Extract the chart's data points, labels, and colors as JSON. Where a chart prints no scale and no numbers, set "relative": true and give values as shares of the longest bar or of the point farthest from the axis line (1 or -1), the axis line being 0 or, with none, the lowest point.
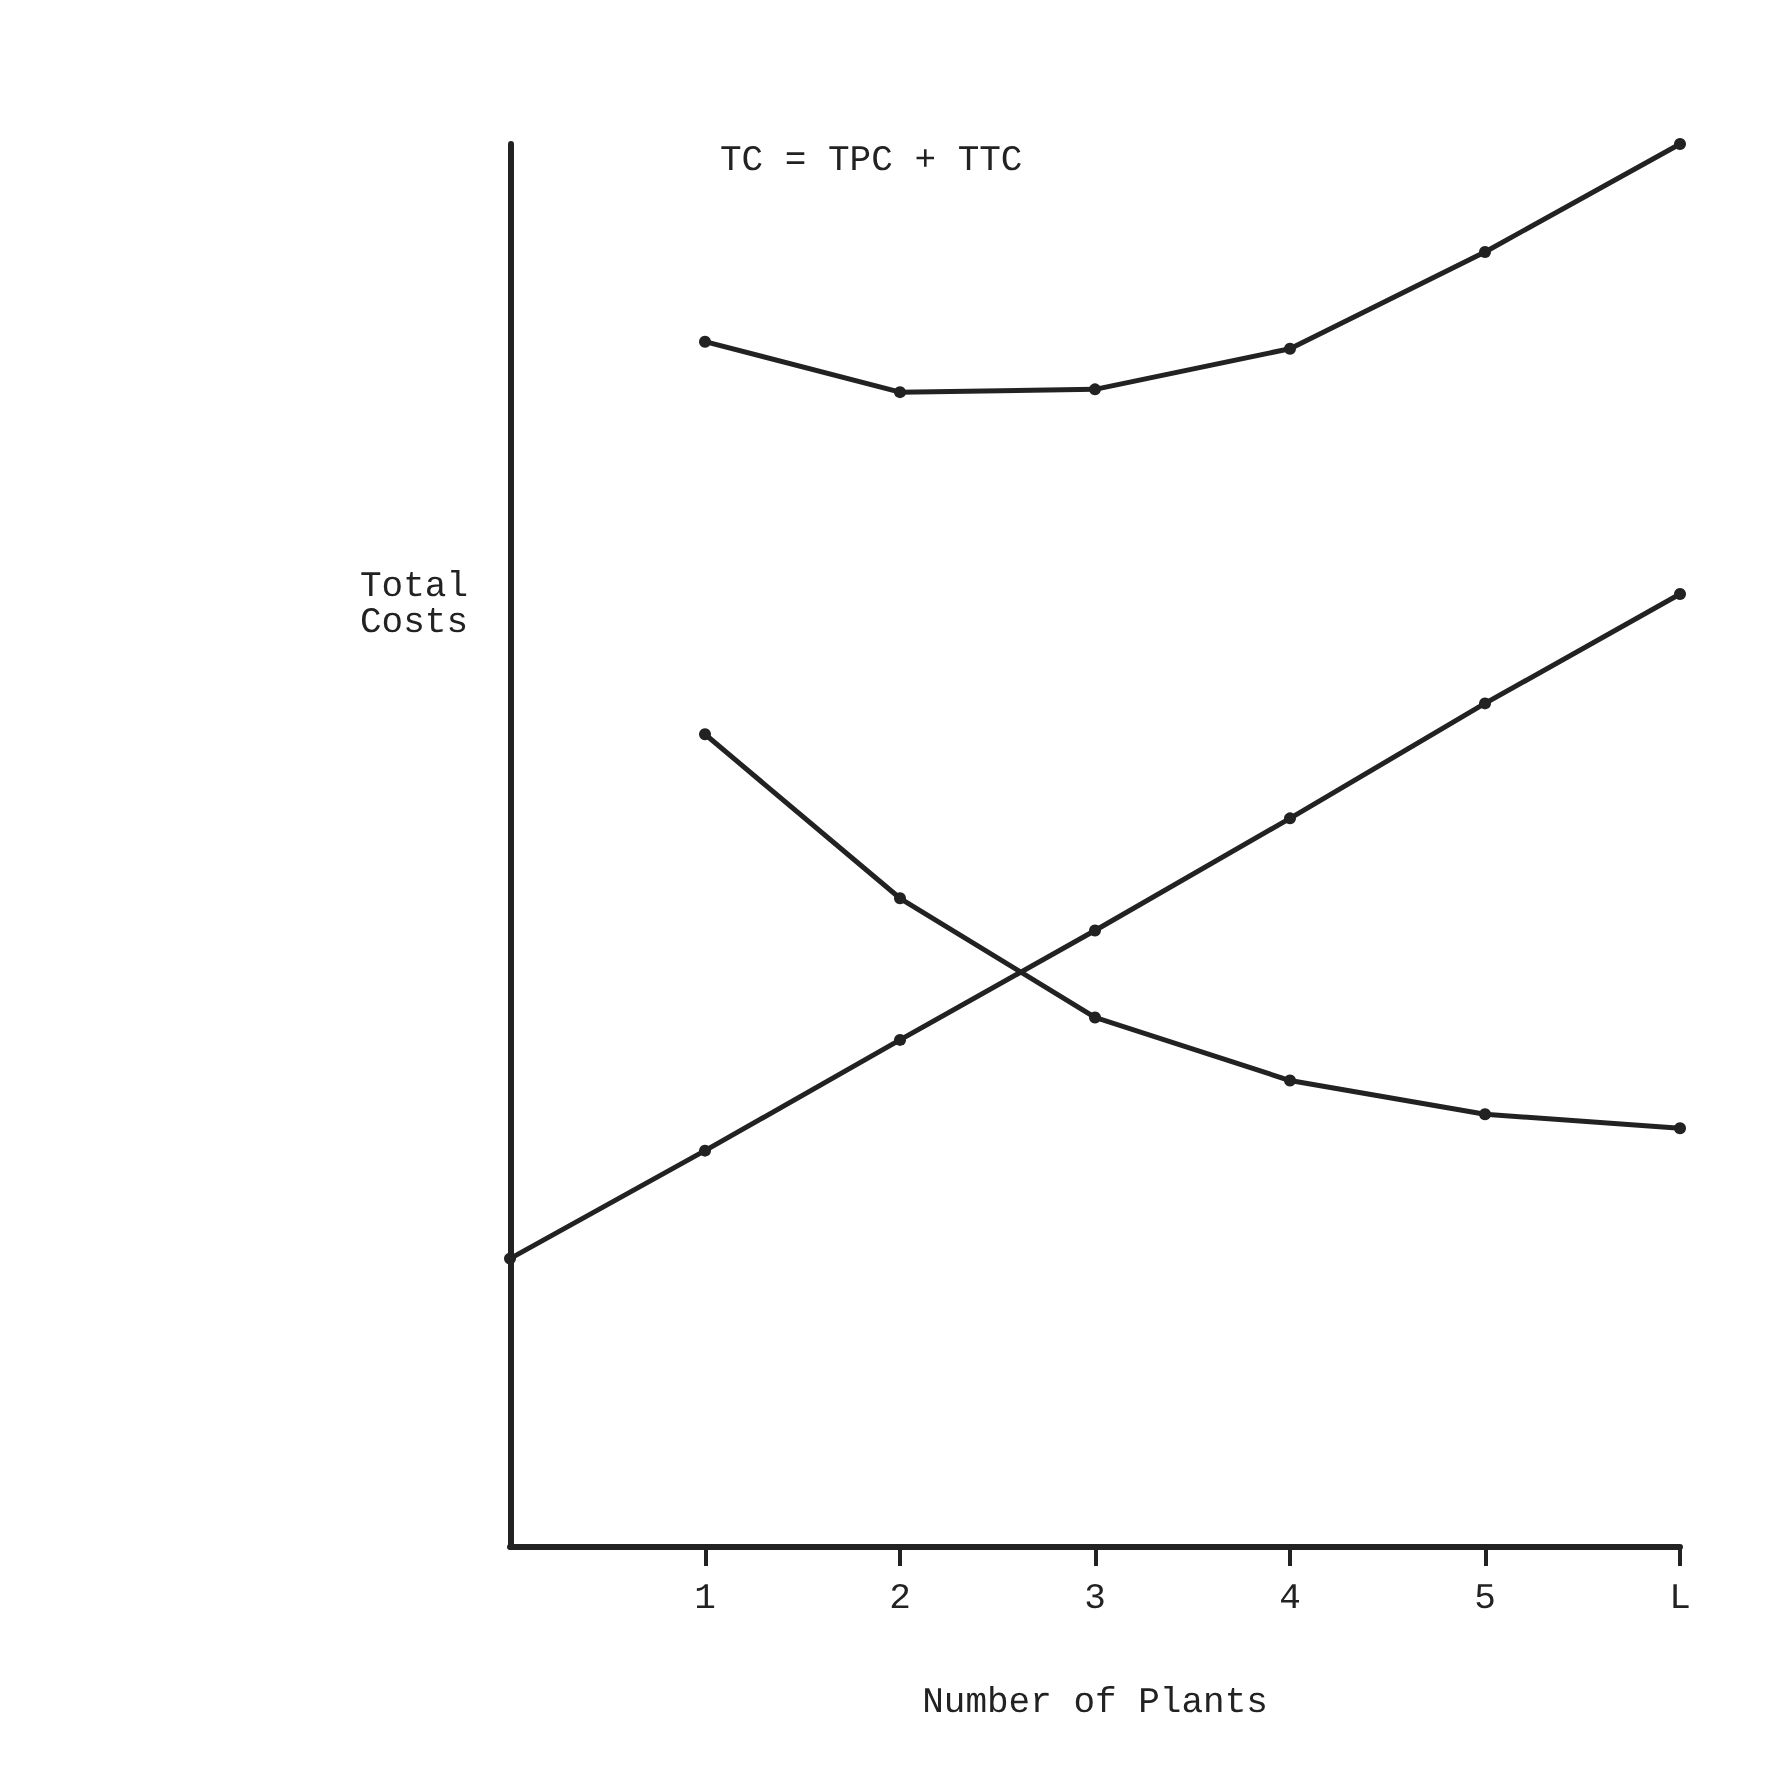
{
  "chart_data": {
    "type": "line",
    "relative": true,
    "xlabel": "Number of Plants",
    "ylabel": "Total\nCosts",
    "annotations": [
      "TC = TPC + TTC"
    ],
    "categories": [
      null,
      "1",
      "2",
      "3",
      "4",
      "5",
      "L"
    ],
    "series": [
      {
        "color": "#222222",
        "values": [
          null,
          0.859,
          0.823,
          0.825,
          0.854,
          0.923,
          1.0
        ]
      },
      {
        "color": "#222222",
        "values": [
          null,
          0.579,
          0.462,
          0.377,
          0.332,
          0.308,
          0.298
        ]
      },
      {
        "color": "#222222",
        "values": [
          0.205,
          0.282,
          0.361,
          0.439,
          0.519,
          0.601,
          0.679
        ]
      }
    ],
    "marker": "circle",
    "line_style": "solid",
    "grid": false
  }
}
